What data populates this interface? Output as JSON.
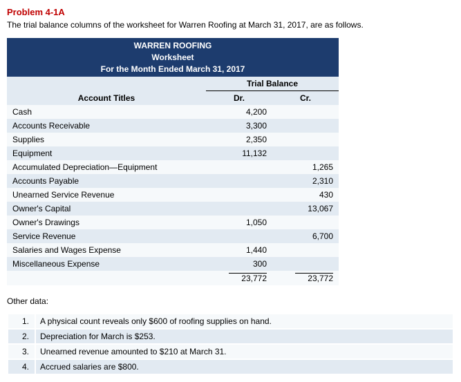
{
  "problem": {
    "title": "Problem 4-1A",
    "description": "The trial balance columns of the worksheet for Warren Roofing at March 31, 2017, are as follows."
  },
  "worksheet": {
    "header_line1": "WARREN ROOFING",
    "header_line2": "Worksheet",
    "header_line3": "For the Month Ended March 31, 2017",
    "trial_balance_label": "Trial Balance",
    "columns": {
      "account_titles": "Account Titles",
      "dr": "Dr.",
      "cr": "Cr."
    },
    "rows": [
      {
        "title": "Cash",
        "dr": "4,200",
        "cr": ""
      },
      {
        "title": "Accounts Receivable",
        "dr": "3,300",
        "cr": ""
      },
      {
        "title": "Supplies",
        "dr": "2,350",
        "cr": ""
      },
      {
        "title": "Equipment",
        "dr": "11,132",
        "cr": ""
      },
      {
        "title": "Accumulated Depreciation—Equipment",
        "dr": "",
        "cr": "1,265"
      },
      {
        "title": "Accounts Payable",
        "dr": "",
        "cr": "2,310"
      },
      {
        "title": "Unearned Service Revenue",
        "dr": "",
        "cr": "430"
      },
      {
        "title": "Owner's Capital",
        "dr": "",
        "cr": "13,067"
      },
      {
        "title": "Owner's Drawings",
        "dr": "1,050",
        "cr": ""
      },
      {
        "title": "Service Revenue",
        "dr": "",
        "cr": "6,700"
      },
      {
        "title": "Salaries and Wages Expense",
        "dr": "1,440",
        "cr": ""
      },
      {
        "title": "Miscellaneous Expense",
        "dr": "300",
        "cr": ""
      }
    ],
    "totals": {
      "dr": "23,772",
      "cr": "23,772"
    }
  },
  "other_data": {
    "label": "Other data:",
    "items": [
      "A physical count reveals only $600 of roofing supplies on hand.",
      "Depreciation for March is $253.",
      "Unearned revenue amounted to $210 at March 31.",
      "Accrued salaries are $800."
    ]
  },
  "colors": {
    "title_red": "#c00000",
    "header_bg": "#1d3c6e",
    "row_light": "#f6f9fb",
    "row_dark": "#e2eaf2"
  }
}
